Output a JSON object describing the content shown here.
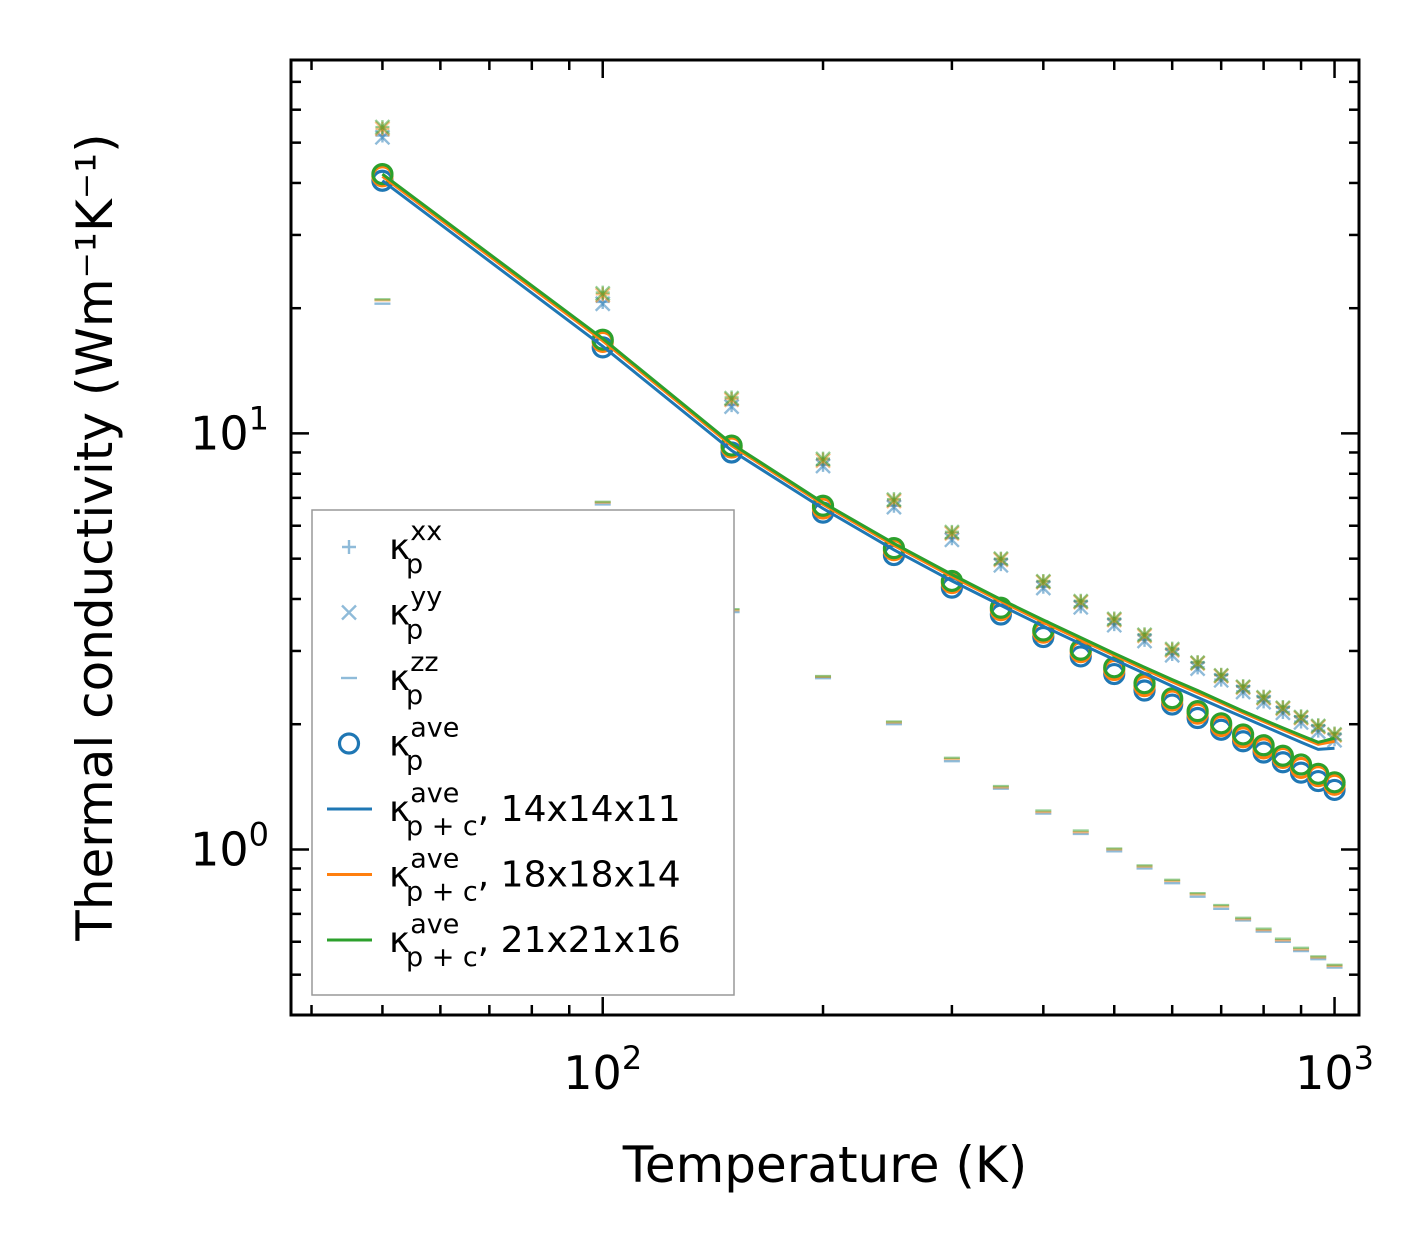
{
  "chart_data": {
    "type": "scatter",
    "title": "",
    "xlabel": "Temperature (K)",
    "ylabel": "Thermal conductivity (Wm⁻¹K⁻¹)",
    "xscale": "log",
    "yscale": "log",
    "xlim": [
      37.5,
      1080
    ],
    "ylim": [
      0.4,
      79
    ],
    "xticks": [
      {
        "value": 100,
        "base": "10",
        "exp": "2"
      },
      {
        "value": 1000,
        "base": "10",
        "exp": "3"
      }
    ],
    "yticks": [
      {
        "value": 1,
        "base": "10",
        "exp": "0"
      },
      {
        "value": 10,
        "base": "10",
        "exp": "1"
      }
    ],
    "x": [
      50,
      100,
      150,
      200,
      250,
      300,
      350,
      400,
      450,
      500,
      550,
      600,
      650,
      700,
      750,
      800,
      850,
      900,
      950,
      1000
    ],
    "series": [
      {
        "name": "κ_p^xx",
        "marker": "plus",
        "color": "#1f77b4",
        "alpha": 0.5,
        "grid": "14x14x11",
        "values": [
          52,
          20.7,
          11.7,
          8.4,
          6.7,
          5.6,
          4.85,
          4.28,
          3.84,
          3.48,
          3.19,
          2.95,
          2.74,
          2.56,
          2.4,
          2.27,
          2.14,
          2.03,
          1.93,
          1.84
        ]
      },
      {
        "name": "κ_p^xx",
        "marker": "plus",
        "color": "#ff7f0e",
        "alpha": 0.5,
        "grid": "18x18x14",
        "values": [
          54,
          21.6,
          12.1,
          8.65,
          6.9,
          5.76,
          4.98,
          4.4,
          3.94,
          3.57,
          3.27,
          3.02,
          2.81,
          2.62,
          2.46,
          2.32,
          2.19,
          2.08,
          1.98,
          1.89
        ]
      },
      {
        "name": "κ_p^xx",
        "marker": "plus",
        "color": "#2ca02c",
        "alpha": 0.5,
        "grid": "21x21x16",
        "values": [
          54.5,
          21.8,
          12.2,
          8.7,
          6.95,
          5.8,
          5.0,
          4.42,
          3.96,
          3.59,
          3.29,
          3.04,
          2.82,
          2.63,
          2.47,
          2.33,
          2.2,
          2.09,
          1.99,
          1.9
        ]
      },
      {
        "name": "κ_p^yy",
        "marker": "x",
        "color": "#1f77b4",
        "alpha": 0.5,
        "grid": "14x14x11",
        "values": [
          51.5,
          20.5,
          11.6,
          8.35,
          6.65,
          5.55,
          4.82,
          4.25,
          3.82,
          3.46,
          3.17,
          2.93,
          2.72,
          2.55,
          2.39,
          2.26,
          2.13,
          2.02,
          1.92,
          1.83
        ]
      },
      {
        "name": "κ_p^yy",
        "marker": "x",
        "color": "#ff7f0e",
        "alpha": 0.5,
        "grid": "18x18x14",
        "values": [
          54,
          21.5,
          12.05,
          8.6,
          6.88,
          5.75,
          4.97,
          4.39,
          3.93,
          3.56,
          3.26,
          3.01,
          2.8,
          2.61,
          2.45,
          2.31,
          2.18,
          2.07,
          1.97,
          1.88
        ]
      },
      {
        "name": "κ_p^yy",
        "marker": "x",
        "color": "#2ca02c",
        "alpha": 0.5,
        "grid": "21x21x16",
        "values": [
          54.5,
          21.7,
          12.15,
          8.68,
          6.93,
          5.79,
          5.0,
          4.41,
          3.95,
          3.58,
          3.28,
          3.03,
          2.81,
          2.62,
          2.46,
          2.32,
          2.19,
          2.08,
          1.98,
          1.89
        ]
      },
      {
        "name": "κ_p^zz",
        "marker": "hline",
        "color": "#1f77b4",
        "alpha": 0.5,
        "grid": "14x14x11",
        "values": [
          20.5,
          6.75,
          3.72,
          2.58,
          2.0,
          1.63,
          1.4,
          1.22,
          1.09,
          0.99,
          0.9,
          0.83,
          0.77,
          0.72,
          0.675,
          0.635,
          0.6,
          0.57,
          0.545,
          0.52
        ]
      },
      {
        "name": "κ_p^zz",
        "marker": "hline",
        "color": "#ff7f0e",
        "alpha": 0.5,
        "grid": "18x18x14",
        "values": [
          20.9,
          6.82,
          3.76,
          2.6,
          2.02,
          1.65,
          1.41,
          1.23,
          1.1,
          1.0,
          0.91,
          0.84,
          0.78,
          0.73,
          0.68,
          0.64,
          0.605,
          0.575,
          0.55,
          0.525
        ]
      },
      {
        "name": "κ_p^zz",
        "marker": "hline",
        "color": "#2ca02c",
        "alpha": 0.5,
        "grid": "21x21x16",
        "values": [
          21.0,
          6.85,
          3.78,
          2.61,
          2.03,
          1.66,
          1.42,
          1.24,
          1.11,
          1.005,
          0.915,
          0.845,
          0.785,
          0.735,
          0.685,
          0.645,
          0.61,
          0.58,
          0.553,
          0.528
        ]
      },
      {
        "name": "κ_p^ave",
        "marker": "circle",
        "color": "#1f77b4",
        "alpha": 1,
        "grid": "14x14x11",
        "values": [
          40.5,
          16.1,
          9.0,
          6.45,
          5.1,
          4.26,
          3.67,
          3.24,
          2.91,
          2.64,
          2.41,
          2.23,
          2.07,
          1.94,
          1.82,
          1.71,
          1.62,
          1.53,
          1.46,
          1.39
        ]
      },
      {
        "name": "κ_p^ave",
        "marker": "circle",
        "color": "#ff7f0e",
        "alpha": 1,
        "grid": "18x18x14",
        "values": [
          41.5,
          16.6,
          9.25,
          6.6,
          5.24,
          4.37,
          3.76,
          3.32,
          2.98,
          2.7,
          2.47,
          2.28,
          2.12,
          1.98,
          1.86,
          1.75,
          1.66,
          1.57,
          1.5,
          1.43
        ]
      },
      {
        "name": "κ_p^ave",
        "marker": "circle",
        "color": "#2ca02c",
        "alpha": 1,
        "grid": "21x21x16",
        "values": [
          42,
          16.8,
          9.35,
          6.7,
          5.3,
          4.42,
          3.81,
          3.36,
          3.02,
          2.74,
          2.51,
          2.31,
          2.15,
          2.01,
          1.89,
          1.78,
          1.68,
          1.6,
          1.52,
          1.45
        ]
      },
      {
        "name": "κ_p+c^ave, 14x14x11",
        "marker": "line",
        "color": "#1f77b4",
        "alpha": 1,
        "grid": "14x14x11",
        "values": [
          40.5,
          16.2,
          9.1,
          6.6,
          5.25,
          4.42,
          3.86,
          3.44,
          3.12,
          2.86,
          2.65,
          2.47,
          2.32,
          2.19,
          2.08,
          1.98,
          1.89,
          1.81,
          1.74,
          1.75
        ]
      },
      {
        "name": "κ_p+c^ave, 18x18x14",
        "marker": "line",
        "color": "#ff7f0e",
        "alpha": 1,
        "grid": "18x18x14",
        "values": [
          41.5,
          16.7,
          9.35,
          6.75,
          5.38,
          4.53,
          3.95,
          3.52,
          3.19,
          2.93,
          2.71,
          2.53,
          2.38,
          2.25,
          2.13,
          2.03,
          1.94,
          1.86,
          1.79,
          1.82
        ]
      },
      {
        "name": "κ_p+c^ave, 21x21x16",
        "marker": "line",
        "color": "#2ca02c",
        "alpha": 1,
        "grid": "21x21x16",
        "values": [
          42,
          16.9,
          9.45,
          6.82,
          5.44,
          4.58,
          3.99,
          3.56,
          3.23,
          2.96,
          2.74,
          2.56,
          2.41,
          2.27,
          2.15,
          2.05,
          1.96,
          1.88,
          1.81,
          1.85
        ]
      }
    ],
    "legend": {
      "location": "lower-left",
      "entries": [
        {
          "marker": "plus",
          "color": "#1f77b4",
          "base": "κ",
          "sup": "xx",
          "sub": "p",
          "suffix": ""
        },
        {
          "marker": "x",
          "color": "#1f77b4",
          "base": "κ",
          "sup": "yy",
          "sub": "p",
          "suffix": ""
        },
        {
          "marker": "hline",
          "color": "#1f77b4",
          "base": "κ",
          "sup": "zz",
          "sub": "p",
          "suffix": ""
        },
        {
          "marker": "circle",
          "color": "#1f77b4",
          "base": "κ",
          "sup": "ave",
          "sub": "p",
          "suffix": ""
        },
        {
          "marker": "line",
          "color": "#1f77b4",
          "base": "κ",
          "sup": "ave",
          "sub": "p + c",
          "suffix": ", 14x14x11"
        },
        {
          "marker": "line",
          "color": "#ff7f0e",
          "base": "κ",
          "sup": "ave",
          "sub": "p + c",
          "suffix": ", 18x18x14"
        },
        {
          "marker": "line",
          "color": "#2ca02c",
          "base": "κ",
          "sup": "ave",
          "sub": "p + c",
          "suffix": ", 21x21x16"
        }
      ]
    }
  }
}
